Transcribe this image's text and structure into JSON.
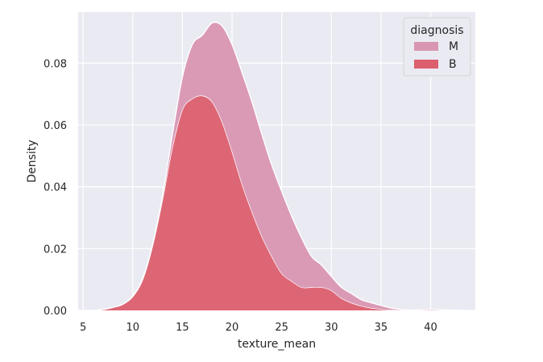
{
  "chart_data": {
    "type": "area",
    "stacked": true,
    "xlabel": "texture_mean",
    "ylabel": "Density",
    "xlim": [
      4.5,
      44.5
    ],
    "ylim": [
      0,
      0.0965
    ],
    "xticks": [
      5,
      10,
      15,
      20,
      25,
      30,
      35,
      40
    ],
    "yticks": [
      0.0,
      0.02,
      0.04,
      0.06,
      0.08
    ],
    "ytick_labels": [
      "0.00",
      "0.02",
      "0.04",
      "0.06",
      "0.08"
    ],
    "grid": true,
    "legend": {
      "title": "diagnosis",
      "placement": "top-right"
    },
    "x": [
      6,
      7,
      8,
      9,
      10,
      11,
      12,
      13,
      14,
      15,
      16,
      17,
      18,
      19,
      20,
      21,
      22,
      23,
      24,
      25,
      26,
      27,
      28,
      29,
      30,
      31,
      32,
      33,
      34,
      35,
      36,
      37,
      38,
      39,
      40,
      41,
      42,
      43
    ],
    "series": [
      {
        "name": "B",
        "color": "#dc5f6e",
        "values": [
          0.0,
          0.0003,
          0.001,
          0.002,
          0.0045,
          0.01,
          0.021,
          0.036,
          0.053,
          0.065,
          0.0685,
          0.0695,
          0.0675,
          0.061,
          0.0515,
          0.041,
          0.032,
          0.024,
          0.0175,
          0.012,
          0.0095,
          0.0075,
          0.0075,
          0.0075,
          0.0065,
          0.004,
          0.0025,
          0.0015,
          0.0008,
          0.0004,
          0.0002,
          0.0001,
          0.0,
          0.0,
          0.0,
          0.0,
          0.0,
          0.0
        ]
      },
      {
        "name": "M",
        "color": "#d996b2",
        "values": [
          0.0,
          0.0,
          0.0,
          0.0,
          0.0002,
          0.0005,
          0.0005,
          0.0012,
          0.004,
          0.0105,
          0.0175,
          0.0195,
          0.0255,
          0.031,
          0.0345,
          0.036,
          0.0355,
          0.033,
          0.0295,
          0.0265,
          0.021,
          0.016,
          0.01,
          0.0072,
          0.0045,
          0.0035,
          0.003,
          0.002,
          0.0017,
          0.0012,
          0.0006,
          0.0002,
          0.0001,
          0.0002,
          0.0003,
          0.0002,
          0.0001,
          0.0
        ]
      }
    ]
  }
}
